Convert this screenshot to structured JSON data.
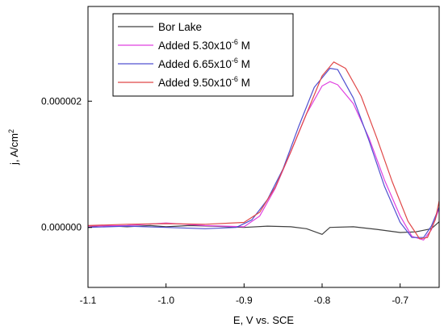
{
  "chart_data": {
    "type": "line",
    "xlabel": "E, V vs. SCE",
    "ylabel": {
      "base": "j, A/cm",
      "sup": "2"
    },
    "xlim": [
      -1.1,
      -0.65
    ],
    "ylim": [
      -9.5e-07,
      3.5e-06
    ],
    "x_ticks": [
      {
        "value": -1.1,
        "label": "-1.1"
      },
      {
        "value": -1.0,
        "label": "-1.0"
      },
      {
        "value": -0.9,
        "label": "-0.9"
      },
      {
        "value": -0.8,
        "label": "-0.8"
      },
      {
        "value": -0.7,
        "label": "-0.7"
      }
    ],
    "y_ticks": [
      {
        "value": 0,
        "label": "0.000000"
      },
      {
        "value": 2e-06,
        "label": "0.000002"
      }
    ],
    "legend_position": "top-left",
    "series": [
      {
        "legend": {
          "base": "Bor Lake",
          "sup": "",
          "tail": ""
        },
        "color": "#404040",
        "points": [
          [
            -1.1,
            0.0
          ],
          [
            -1.08,
            3e-08
          ],
          [
            -1.05,
            1e-08
          ],
          [
            -1.02,
            3e-08
          ],
          [
            -1.0,
            1e-08
          ],
          [
            -0.97,
            3e-08
          ],
          [
            -0.94,
            2e-08
          ],
          [
            -0.9,
            0.0
          ],
          [
            -0.87,
            2e-08
          ],
          [
            -0.84,
            1e-08
          ],
          [
            -0.82,
            -2e-08
          ],
          [
            -0.8,
            -1.1e-07
          ],
          [
            -0.79,
            0.0
          ],
          [
            -0.76,
            1e-08
          ],
          [
            -0.73,
            -3e-08
          ],
          [
            -0.7,
            -8e-08
          ],
          [
            -0.68,
            -7e-08
          ],
          [
            -0.66,
            -2e-08
          ],
          [
            -0.65,
            9e-08
          ]
        ]
      },
      {
        "legend": {
          "base": "Added 5.30x10",
          "sup": "-6",
          "tail": " M"
        },
        "color": "#e040e0",
        "points": [
          [
            -1.1,
            2e-08
          ],
          [
            -1.05,
            3e-08
          ],
          [
            -1.0,
            7e-08
          ],
          [
            -0.95,
            3e-08
          ],
          [
            -0.9,
            1e-08
          ],
          [
            -0.88,
            1.8e-07
          ],
          [
            -0.86,
            6.2e-07
          ],
          [
            -0.84,
            1.2e-06
          ],
          [
            -0.82,
            1.8e-06
          ],
          [
            -0.8,
            2.24e-06
          ],
          [
            -0.79,
            2.31e-06
          ],
          [
            -0.78,
            2.26e-06
          ],
          [
            -0.76,
            1.96e-06
          ],
          [
            -0.74,
            1.42e-06
          ],
          [
            -0.72,
            7.5e-07
          ],
          [
            -0.7,
            1.8e-07
          ],
          [
            -0.685,
            -1.4e-07
          ],
          [
            -0.67,
            -2e-07
          ],
          [
            -0.66,
            -4e-08
          ],
          [
            -0.65,
            3e-07
          ]
        ]
      },
      {
        "legend": {
          "base": "Added 6.65x10",
          "sup": "-6",
          "tail": " M"
        },
        "color": "#5050d0",
        "points": [
          [
            -1.1,
            0.0
          ],
          [
            -1.05,
            2e-08
          ],
          [
            -1.0,
            0.0
          ],
          [
            -0.95,
            -2e-08
          ],
          [
            -0.91,
            0.0
          ],
          [
            -0.89,
            1.2e-07
          ],
          [
            -0.87,
            4.4e-07
          ],
          [
            -0.85,
            9.3e-07
          ],
          [
            -0.83,
            1.6e-06
          ],
          [
            -0.81,
            2.22e-06
          ],
          [
            -0.79,
            2.52e-06
          ],
          [
            -0.78,
            2.5e-06
          ],
          [
            -0.76,
            2.05e-06
          ],
          [
            -0.74,
            1.38e-06
          ],
          [
            -0.72,
            6.5e-07
          ],
          [
            -0.7,
            8e-08
          ],
          [
            -0.685,
            -1.6e-07
          ],
          [
            -0.67,
            -1.6e-07
          ],
          [
            -0.66,
            2e-08
          ],
          [
            -0.65,
            3.2e-07
          ]
        ]
      },
      {
        "legend": {
          "base": "Added 9.50x10",
          "sup": "-6",
          "tail": " M"
        },
        "color": "#e04848",
        "points": [
          [
            -1.1,
            3e-08
          ],
          [
            -1.05,
            5e-08
          ],
          [
            -1.0,
            6e-08
          ],
          [
            -0.95,
            5e-08
          ],
          [
            -0.9,
            8e-08
          ],
          [
            -0.88,
            2.4e-07
          ],
          [
            -0.86,
            6.4e-07
          ],
          [
            -0.84,
            1.2e-06
          ],
          [
            -0.82,
            1.8e-06
          ],
          [
            -0.8,
            2.4e-06
          ],
          [
            -0.785,
            2.62e-06
          ],
          [
            -0.77,
            2.52e-06
          ],
          [
            -0.75,
            2.08e-06
          ],
          [
            -0.73,
            1.42e-06
          ],
          [
            -0.71,
            7.2e-07
          ],
          [
            -0.69,
            1e-07
          ],
          [
            -0.675,
            -1.8e-07
          ],
          [
            -0.665,
            -1.6e-07
          ],
          [
            -0.655,
            1.2e-07
          ],
          [
            -0.65,
            4.2e-07
          ]
        ]
      }
    ]
  }
}
